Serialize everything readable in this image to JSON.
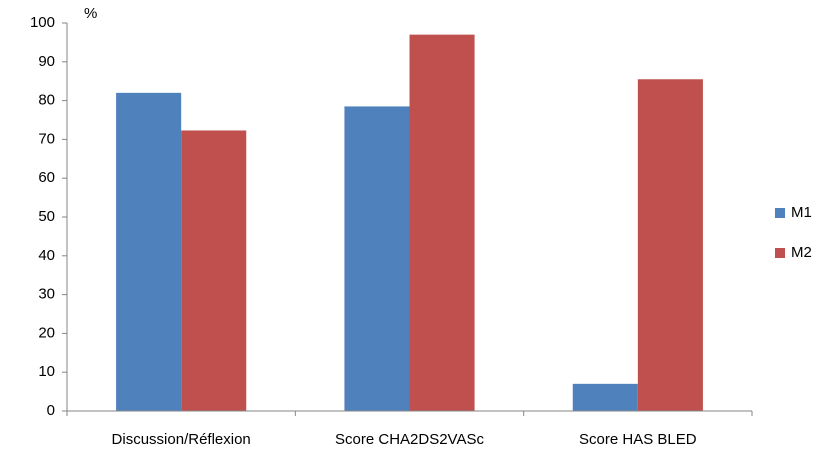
{
  "chart_data": {
    "type": "bar",
    "y_label": "%",
    "categories": [
      "Discussion/Réflexion",
      "Score CHA2DS2VASc",
      "Score HAS BLED"
    ],
    "series": [
      {
        "name": "M1",
        "color": "#4f81bd",
        "values": [
          82,
          78.5,
          7
        ]
      },
      {
        "name": "M2",
        "color": "#c0504d",
        "values": [
          72.3,
          97,
          85.5
        ]
      }
    ],
    "ylim": [
      0,
      100
    ],
    "yticks": [
      0,
      10,
      20,
      30,
      40,
      50,
      60,
      70,
      80,
      90,
      100
    ],
    "grid": false,
    "legend": "right"
  }
}
